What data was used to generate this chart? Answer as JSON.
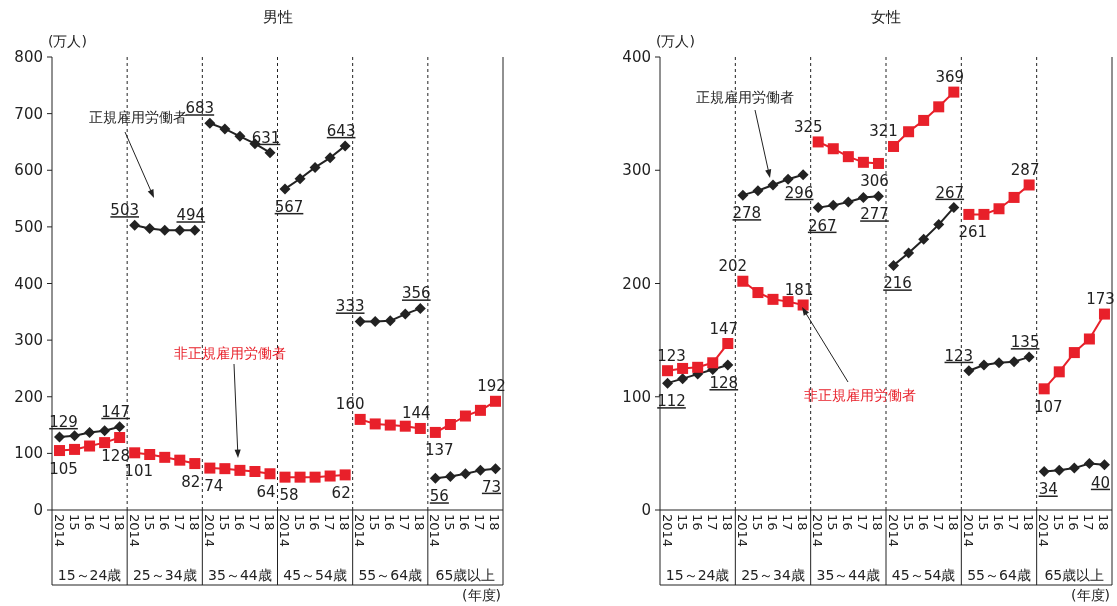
{
  "chart_data": [
    {
      "type": "line",
      "title": "男性",
      "ylabel": "(万人)",
      "xlabel": "(年度)",
      "legend": false,
      "grid": false,
      "categories": [
        "2014",
        "15",
        "16",
        "17",
        "18",
        "2014",
        "15",
        "16",
        "17",
        "18",
        "2014",
        "15",
        "16",
        "17",
        "18",
        "2014",
        "15",
        "16",
        "17",
        "18",
        "2014",
        "15",
        "16",
        "17",
        "18",
        "2014",
        "15",
        "16",
        "17",
        "18"
      ],
      "annotations": [
        "15～24歳",
        "25～34歳",
        "35～44歳",
        "45～54歳",
        "55～64歳",
        "65歳以上"
      ],
      "ylim": [
        0,
        800
      ],
      "yticks": [
        0,
        100,
        200,
        300,
        400,
        500,
        600,
        700,
        800
      ],
      "series": [
        {
          "name": "正規雇用労働者",
          "color": "#222222",
          "marker": "diamond",
          "values": [
            129,
            131,
            137,
            140,
            147,
            503,
            497,
            494,
            494,
            494,
            683,
            673,
            660,
            647,
            631,
            567,
            585,
            605,
            622,
            643,
            333,
            333,
            334,
            346,
            356,
            56,
            59,
            64,
            70,
            73
          ],
          "value_labels": [
            "129",
            null,
            null,
            null,
            "147",
            "503",
            null,
            null,
            null,
            "494",
            "683",
            null,
            null,
            null,
            "631",
            "567",
            null,
            null,
            null,
            "643",
            "333",
            null,
            null,
            null,
            "356",
            "56",
            null,
            null,
            null,
            "73"
          ]
        },
        {
          "name": "非正規雇用労働者",
          "color": "#e8202a",
          "marker": "square",
          "values": [
            105,
            107,
            113,
            119,
            128,
            101,
            98,
            93,
            88,
            82,
            74,
            73,
            70,
            68,
            64,
            58,
            58,
            58,
            60,
            62,
            160,
            152,
            150,
            148,
            144,
            137,
            151,
            166,
            176,
            192
          ],
          "value_labels": [
            "105",
            null,
            null,
            null,
            "128",
            "101",
            null,
            null,
            null,
            "82",
            "74",
            null,
            null,
            null,
            "64",
            "58",
            null,
            null,
            null,
            "62",
            "160",
            null,
            null,
            null,
            "144",
            "137",
            null,
            null,
            null,
            "192"
          ]
        }
      ]
    },
    {
      "type": "line",
      "title": "女性",
      "ylabel": "(万人)",
      "xlabel": "(年度)",
      "legend": false,
      "grid": false,
      "categories": [
        "2014",
        "15",
        "16",
        "17",
        "18",
        "2014",
        "15",
        "16",
        "17",
        "18",
        "2014",
        "15",
        "16",
        "17",
        "18",
        "2014",
        "15",
        "16",
        "17",
        "18",
        "2014",
        "15",
        "16",
        "17",
        "18",
        "2014",
        "15",
        "16",
        "17",
        "18"
      ],
      "annotations": [
        "15～24歳",
        "25～34歳",
        "35～44歳",
        "45～54歳",
        "55～64歳",
        "65歳以上"
      ],
      "ylim": [
        0,
        400
      ],
      "yticks": [
        0,
        100,
        200,
        300,
        400
      ],
      "series": [
        {
          "name": "正規雇用労働者",
          "color": "#222222",
          "marker": "diamond",
          "values": [
            112,
            116,
            120,
            124,
            128,
            278,
            282,
            287,
            292,
            296,
            267,
            269,
            272,
            276,
            277,
            216,
            227,
            239,
            252,
            267,
            123,
            128,
            130,
            131,
            135,
            34,
            35,
            37,
            41,
            40
          ],
          "value_labels": [
            "112",
            null,
            null,
            null,
            "128",
            "278",
            null,
            null,
            null,
            "296",
            "267",
            null,
            null,
            null,
            "277",
            "216",
            null,
            null,
            null,
            "267",
            "123",
            null,
            null,
            null,
            "135",
            "34",
            null,
            null,
            null,
            "40"
          ]
        },
        {
          "name": "非正規雇用労働者",
          "color": "#e8202a",
          "marker": "square",
          "values": [
            123,
            125,
            126,
            130,
            147,
            202,
            192,
            186,
            184,
            181,
            325,
            319,
            312,
            307,
            306,
            321,
            334,
            344,
            356,
            369,
            261,
            261,
            266,
            276,
            287,
            107,
            122,
            139,
            151,
            173
          ],
          "value_labels": [
            "123",
            null,
            null,
            null,
            "147",
            "202",
            null,
            null,
            null,
            "181",
            "325",
            null,
            null,
            null,
            "306",
            "321",
            null,
            null,
            null,
            "369",
            "261",
            null,
            null,
            null,
            "287",
            "107",
            null,
            null,
            null,
            "173"
          ]
        }
      ]
    }
  ]
}
